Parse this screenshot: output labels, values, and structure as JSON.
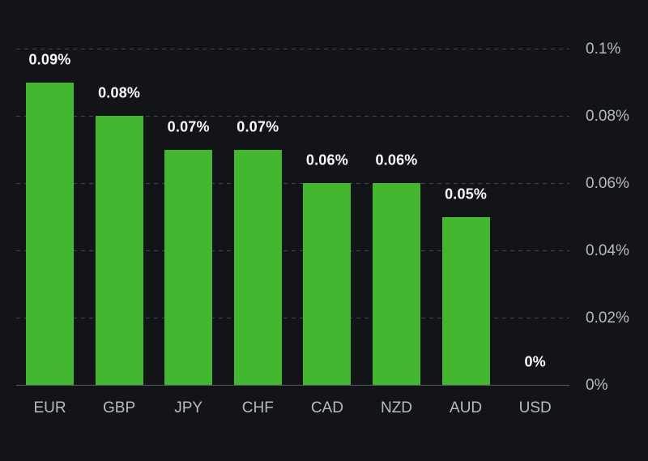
{
  "chart_data": {
    "type": "bar",
    "categories": [
      "EUR",
      "GBP",
      "JPY",
      "CHF",
      "CAD",
      "NZD",
      "AUD",
      "USD"
    ],
    "values": [
      0.09,
      0.08,
      0.07,
      0.07,
      0.06,
      0.06,
      0.05,
      0
    ],
    "value_labels": [
      "0.09%",
      "0.08%",
      "0.07%",
      "0.07%",
      "0.06%",
      "0.06%",
      "0.05%",
      "0%"
    ],
    "yticks": {
      "values": [
        0,
        0.02,
        0.04,
        0.06,
        0.08,
        0.1
      ],
      "labels": [
        "0%",
        "0.02%",
        "0.04%",
        "0.06%",
        "0.08%",
        "0.1%"
      ]
    },
    "ylim": [
      0,
      0.1
    ],
    "title": "",
    "xlabel": "",
    "ylabel": "",
    "grid": "horizontal-dashed",
    "legend_position": "none",
    "yaxis_position": "right",
    "colors": {
      "background": "#121417",
      "bar": "#42b72f",
      "grid": "#42454b",
      "baseline": "#5a5d62",
      "axis_text": "#b8bac2",
      "value_text": "#fafbfd"
    }
  }
}
